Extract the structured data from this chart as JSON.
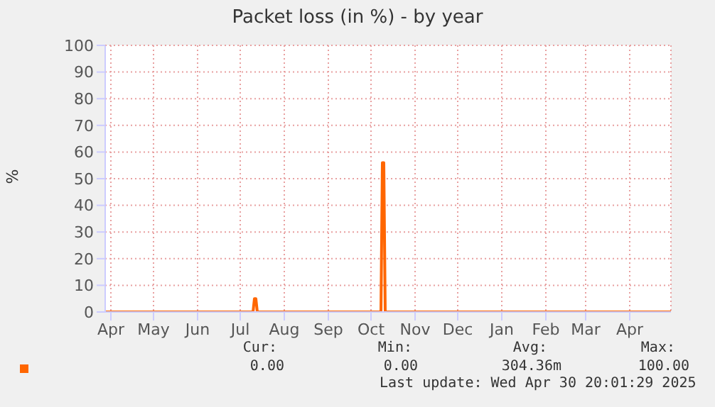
{
  "chart_data": {
    "type": "line",
    "title": "Packet loss (in %) - by year",
    "ylabel": "%",
    "xlim": [
      "2024-03-28",
      "2025-04-30"
    ],
    "xticks": [
      {
        "value": "2024-04-01",
        "label": "Apr"
      },
      {
        "value": "2024-05-01",
        "label": "May"
      },
      {
        "value": "2024-06-01",
        "label": "Jun"
      },
      {
        "value": "2024-07-01",
        "label": "Jul"
      },
      {
        "value": "2024-08-01",
        "label": "Aug"
      },
      {
        "value": "2024-09-01",
        "label": "Sep"
      },
      {
        "value": "2024-10-01",
        "label": "Oct"
      },
      {
        "value": "2024-11-01",
        "label": "Nov"
      },
      {
        "value": "2024-12-01",
        "label": "Dec"
      },
      {
        "value": "2025-01-01",
        "label": "Jan"
      },
      {
        "value": "2025-02-01",
        "label": "Feb"
      },
      {
        "value": "2025-03-01",
        "label": "Mar"
      },
      {
        "value": "2025-04-01",
        "label": "Apr"
      }
    ],
    "ylim": [
      0,
      100
    ],
    "yticks": [
      0,
      10,
      20,
      30,
      40,
      50,
      60,
      70,
      80,
      90,
      100
    ],
    "grid": true,
    "marker": "none",
    "line_style": "solid",
    "series": [
      {
        "color": "#ff6600",
        "x": [
          "2024-03-28",
          "2024-07-10",
          "2024-07-11",
          "2024-07-12",
          "2024-07-13",
          "2024-10-08",
          "2024-10-09",
          "2024-10-10",
          "2024-10-11",
          "2025-04-30"
        ],
        "values": [
          0,
          0,
          5,
          5,
          0,
          0,
          56,
          56,
          0,
          0
        ]
      }
    ],
    "annotations": [
      "Cur:",
      "Min:",
      "Avg:",
      "Max:",
      "0.00",
      "0.00",
      "304.36m",
      "100.00",
      "Last update: Wed Apr 30 20:01:29 2025"
    ]
  }
}
